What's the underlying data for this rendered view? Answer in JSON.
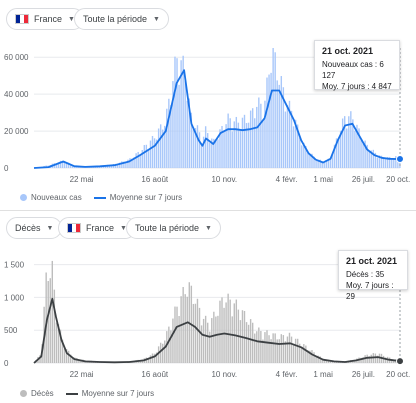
{
  "top": {
    "country_label": "France",
    "period_label": "Toute la période",
    "tooltip": {
      "date": "21 oct. 2021",
      "line1": "Nouveaux cas : 6 127",
      "line2": "Moy. 7 jours : 4 847"
    },
    "legend": {
      "bars": "Nouveaux cas",
      "line": "Moyenne sur 7 jours"
    },
    "colors": {
      "bars": "#a8c7fa",
      "line": "#1a73e8"
    }
  },
  "bottom": {
    "metric_label": "Décès",
    "country_label": "France",
    "period_label": "Toute la période",
    "tooltip": {
      "date": "21 oct. 2021",
      "line1": "Décès : 35",
      "line2": "Moy. 7 jours : 29"
    },
    "legend": {
      "bars": "Décès",
      "line": "Moyenne sur 7 jours"
    },
    "colors": {
      "bars": "#bdbdbd",
      "line": "#3c4043"
    }
  },
  "chart_data": [
    {
      "type": "bar",
      "ylim": [
        0,
        65000
      ],
      "y_ticks": [
        "0",
        "20 000",
        "40 000",
        "60 000"
      ],
      "x_ticks": [
        "22 mai",
        "16 août",
        "10 nov.",
        "4 févr.",
        "1 mai",
        "26 juil.",
        "20 oct."
      ],
      "series": [
        {
          "name": "Nouveaux cas",
          "x": [
            0,
            0.04,
            0.08,
            0.11,
            0.14,
            0.18,
            0.22,
            0.26,
            0.29,
            0.33,
            0.36,
            0.39,
            0.41,
            0.43,
            0.45,
            0.46,
            0.47,
            0.49,
            0.51,
            0.53,
            0.55,
            0.57,
            0.59,
            0.61,
            0.63,
            0.65,
            0.67,
            0.69,
            0.71,
            0.73,
            0.75,
            0.77,
            0.79,
            0.81,
            0.83,
            0.85,
            0.87,
            0.89,
            0.91,
            0.93,
            0.95,
            0.97,
            1.0
          ],
          "values": [
            0,
            1500,
            4000,
            1200,
            700,
            1200,
            2000,
            4500,
            9000,
            17000,
            26000,
            60000,
            55000,
            28000,
            20000,
            15000,
            21000,
            14000,
            20000,
            27000,
            25000,
            26000,
            28000,
            35000,
            34000,
            65000,
            50000,
            36000,
            29000,
            15000,
            9000,
            5000,
            3500,
            5000,
            17000,
            28000,
            28000,
            19000,
            12000,
            8500,
            6000,
            5500,
            6127
          ]
        },
        {
          "name": "Moyenne sur 7 jours",
          "x": [
            0,
            0.04,
            0.08,
            0.11,
            0.14,
            0.18,
            0.22,
            0.26,
            0.29,
            0.33,
            0.36,
            0.39,
            0.41,
            0.43,
            0.45,
            0.46,
            0.47,
            0.49,
            0.51,
            0.53,
            0.55,
            0.57,
            0.59,
            0.61,
            0.63,
            0.65,
            0.67,
            0.69,
            0.71,
            0.73,
            0.75,
            0.77,
            0.79,
            0.81,
            0.83,
            0.85,
            0.87,
            0.89,
            0.91,
            0.93,
            0.95,
            0.97,
            1.0
          ],
          "values": [
            0,
            500,
            3500,
            1000,
            600,
            900,
            1500,
            3500,
            7000,
            12000,
            20000,
            46000,
            53000,
            24000,
            15000,
            12000,
            16000,
            13000,
            19000,
            21000,
            21000,
            20500,
            21000,
            22000,
            27000,
            42000,
            42000,
            34000,
            26000,
            15000,
            8000,
            4500,
            3000,
            5000,
            15000,
            23000,
            24000,
            17000,
            10000,
            7000,
            5500,
            5000,
            4847
          ]
        }
      ]
    },
    {
      "type": "bar",
      "ylim": [
        0,
        1600
      ],
      "y_ticks": [
        "0",
        "500",
        "1 000",
        "1 500"
      ],
      "x_ticks": [
        "22 mai",
        "16 août",
        "10 nov.",
        "4 févr.",
        "1 mai",
        "26 juil.",
        "20 oct."
      ],
      "series": [
        {
          "name": "Décès",
          "x": [
            0,
            0.02,
            0.035,
            0.05,
            0.06,
            0.075,
            0.09,
            0.11,
            0.14,
            0.18,
            0.22,
            0.26,
            0.3,
            0.33,
            0.36,
            0.39,
            0.42,
            0.44,
            0.46,
            0.48,
            0.5,
            0.52,
            0.55,
            0.58,
            0.61,
            0.64,
            0.67,
            0.7,
            0.73,
            0.76,
            0.79,
            0.82,
            0.85,
            0.88,
            0.91,
            0.94,
            0.97,
            1.0
          ],
          "values": [
            0,
            150,
            1400,
            1450,
            800,
            400,
            200,
            80,
            40,
            20,
            15,
            20,
            60,
            150,
            400,
            850,
            1200,
            1000,
            700,
            600,
            800,
            1000,
            900,
            700,
            500,
            450,
            400,
            420,
            300,
            180,
            60,
            30,
            20,
            60,
            120,
            150,
            80,
            35
          ]
        },
        {
          "name": "Moyenne sur 7 jours",
          "x": [
            0,
            0.02,
            0.035,
            0.05,
            0.06,
            0.075,
            0.09,
            0.11,
            0.14,
            0.18,
            0.22,
            0.26,
            0.3,
            0.33,
            0.36,
            0.39,
            0.42,
            0.44,
            0.46,
            0.48,
            0.5,
            0.52,
            0.55,
            0.58,
            0.61,
            0.64,
            0.67,
            0.7,
            0.73,
            0.76,
            0.79,
            0.82,
            0.85,
            0.88,
            0.91,
            0.94,
            0.97,
            1.0
          ],
          "values": [
            0,
            100,
            650,
            980,
            700,
            350,
            150,
            60,
            25,
            15,
            10,
            15,
            40,
            100,
            250,
            550,
            620,
            550,
            430,
            400,
            430,
            450,
            420,
            380,
            330,
            310,
            290,
            300,
            240,
            130,
            50,
            25,
            15,
            40,
            80,
            90,
            50,
            29
          ]
        }
      ]
    }
  ]
}
